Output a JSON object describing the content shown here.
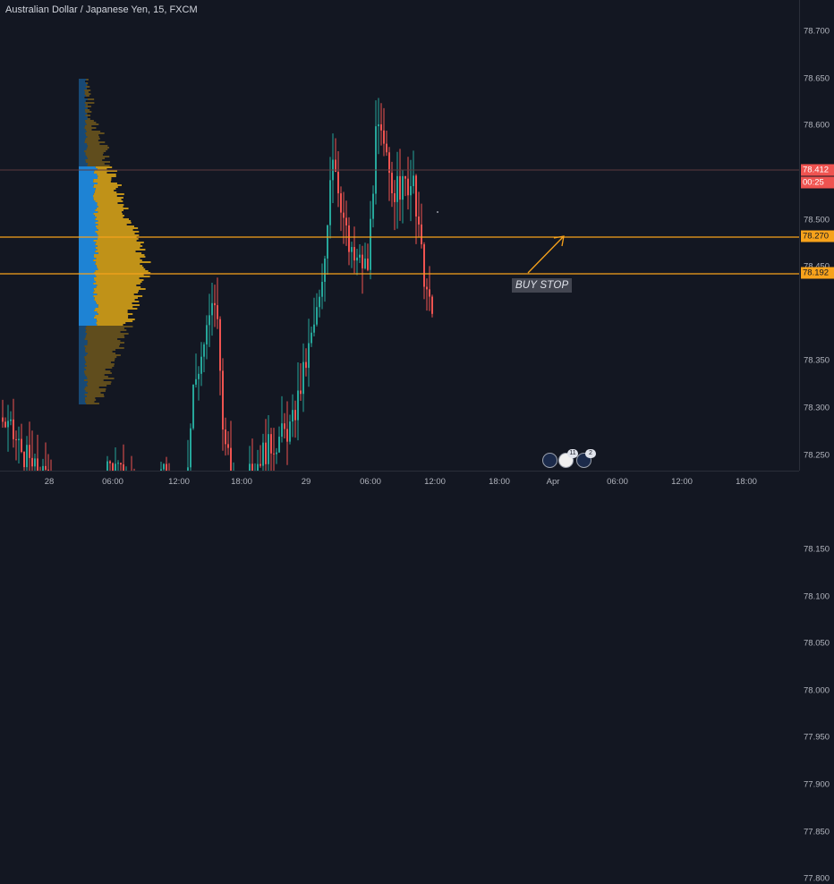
{
  "header": {
    "title": "Australian Dollar / Japanese Yen, 15, FXCM"
  },
  "colors": {
    "background": "#131722",
    "up_candle": "#26a69a",
    "down_candle": "#ef5350",
    "level_line": "#f7a21b",
    "current_price_line": "#ef5350",
    "volume_profile_blue": "#2196f3",
    "volume_profile_gold": "#d4a017"
  },
  "annotation": {
    "label": "BUY STOP"
  },
  "events": [
    {
      "icon": "au-flag-icon",
      "badge": ""
    },
    {
      "icon": "jp-flag-icon",
      "badge": "11"
    },
    {
      "icon": "au-flag-icon",
      "badge": "2"
    }
  ],
  "chart_data": {
    "type": "candlestick",
    "symbol": "Australian Dollar / Japanese Yen",
    "interval": "15",
    "source": "FXCM",
    "y_ticks": [
      "78.750",
      "78.700",
      "78.650",
      "78.600",
      "78.550",
      "78.500",
      "78.450",
      "78.350",
      "78.300",
      "78.250",
      "78.150",
      "78.100",
      "78.050",
      "78.000",
      "77.950",
      "77.900",
      "77.850",
      "77.800"
    ],
    "ylim": [
      77.78,
      78.77
    ],
    "x_ticks": [
      "28",
      "06:00",
      "12:00",
      "18:00",
      "29",
      "06:00",
      "12:00",
      "18:00",
      "Apr",
      "06:00",
      "12:00",
      "18:00"
    ],
    "price_labels": [
      {
        "value": "78.412",
        "kind": "last"
      },
      {
        "value": "00:25",
        "kind": "countdown"
      },
      {
        "value": "78.270",
        "kind": "level"
      },
      {
        "value": "78.192",
        "kind": "level"
      }
    ],
    "levels": [
      78.27,
      78.192
    ],
    "last_price": 78.412,
    "grid": false
  }
}
